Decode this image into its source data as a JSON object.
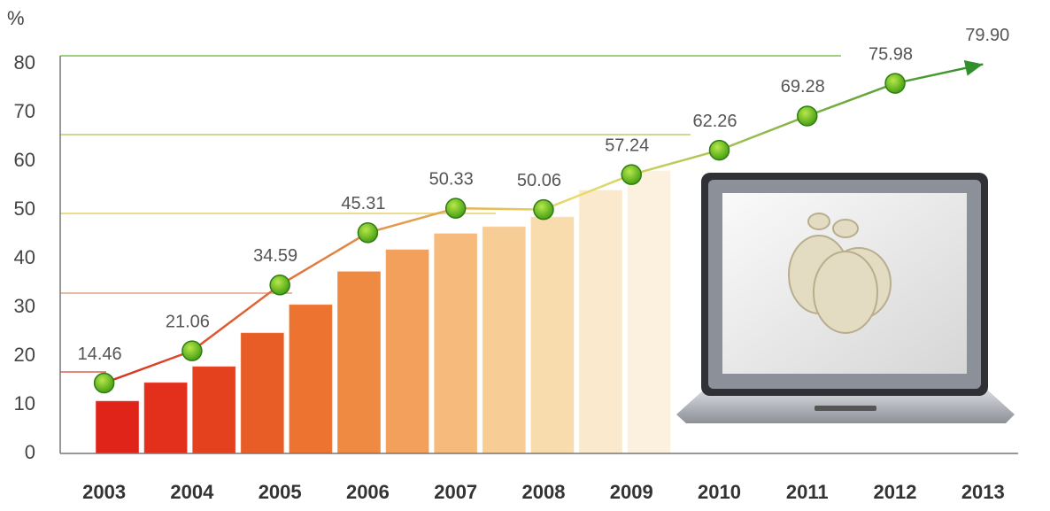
{
  "chart_data": {
    "type": "line",
    "y_label": "%",
    "x": [
      2003,
      2004,
      2005,
      2006,
      2007,
      2008,
      2009,
      2010,
      2011,
      2012,
      2013
    ],
    "xlim": [
      2002.5,
      2013.4
    ],
    "xticks": [
      2003,
      2004,
      2005,
      2006,
      2007,
      2008,
      2009,
      2010,
      2011,
      2012,
      2013
    ],
    "ylim": [
      0,
      80
    ],
    "yticks": [
      0,
      10,
      20,
      30,
      40,
      50,
      60,
      70,
      80
    ],
    "series": [
      {
        "values": [
          14.46,
          21.06,
          34.59,
          45.31,
          50.33,
          50.06,
          57.24,
          62.26,
          69.28,
          75.98,
          79.9
        ],
        "value_labels": [
          "14.46",
          "21.06",
          "34.59",
          "45.31",
          "50.33",
          "50.06",
          "57.24",
          "62.26",
          "69.28",
          "75.98",
          "79.90"
        ],
        "colors": [
          "#d92a1c",
          "#2f8f2a"
        ]
      }
    ],
    "bars": {
      "x": [
        2003.15,
        2003.7,
        2004.25,
        2004.8,
        2005.35,
        2005.9,
        2006.45,
        2007.0,
        2007.55,
        2008.1,
        2008.65,
        2009.2
      ],
      "values": [
        10.7,
        14.5,
        17.8,
        24.7,
        30.5,
        37.3,
        41.8,
        45.1,
        46.5,
        48.5,
        54,
        58
      ],
      "colors": [
        "#e0241a",
        "#e2301c",
        "#e4421f",
        "#e85d26",
        "#ec7430",
        "#ef8a42",
        "#f2a05c",
        "#f6bb7c",
        "#f8cc95",
        "#f9dcad",
        "#fae9cc",
        "#fbf1de"
      ]
    }
  }
}
